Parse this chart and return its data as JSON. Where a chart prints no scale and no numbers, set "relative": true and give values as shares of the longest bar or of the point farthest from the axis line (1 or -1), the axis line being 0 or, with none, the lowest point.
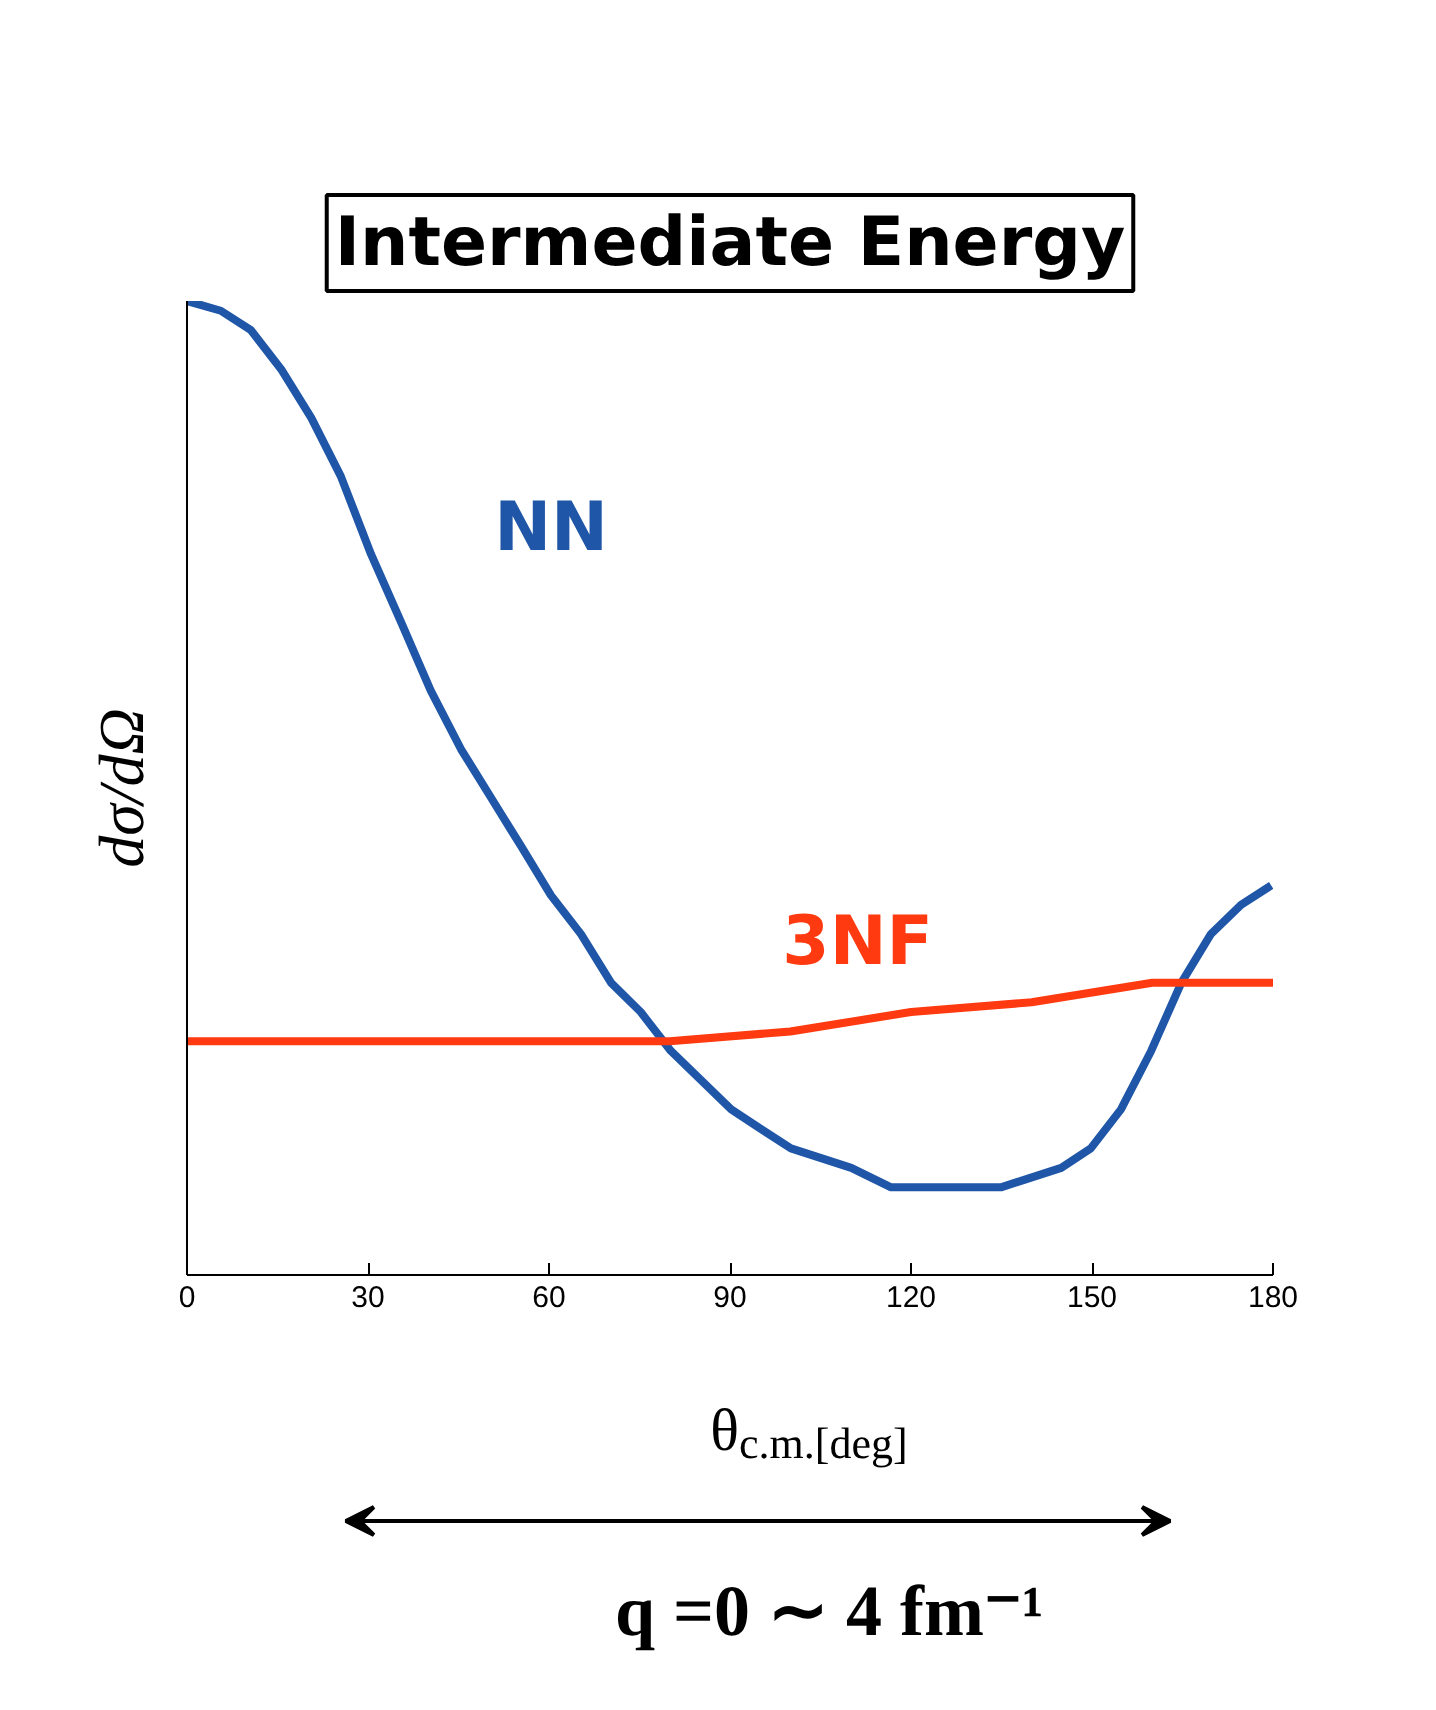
{
  "chart_data": {
    "type": "line",
    "title": "Intermediate Energy",
    "xlabel": "θ$_{c.m.[deg]}$",
    "ylabel": "dσ/dΩ",
    "annotations": [
      "q =0 ∼ 4 fm⁻¹"
    ],
    "relative": true,
    "tick_labels": "x",
    "grid": false,
    "marker": "none",
    "line_style": "solid",
    "xlim": [
      0,
      180
    ],
    "xticks": [
      0,
      30,
      60,
      90,
      120,
      150,
      180
    ],
    "series": [
      {
        "name": "NN",
        "color": "#1f56a8",
        "x": [
          0,
          5.6,
          10.6,
          15.6,
          20.6,
          25.5,
          30.5,
          35.5,
          40.4,
          45.4,
          50.4,
          55.4,
          60.3,
          65.3,
          70.3,
          75.2,
          80.2,
          85.2,
          90.2,
          95.1,
          100.1,
          105.1,
          110.1,
          116.7,
          125.0,
          130.0,
          134.9,
          139.9,
          144.9,
          149.8,
          154.8,
          159.8,
          164.8,
          169.7,
          174.7,
          179.7
        ],
        "values": [
          1.0,
          0.99,
          0.97,
          0.93,
          0.88,
          0.82,
          0.74,
          0.67,
          0.6,
          0.54,
          0.49,
          0.44,
          0.39,
          0.35,
          0.3,
          0.27,
          0.23,
          0.2,
          0.17,
          0.15,
          0.13,
          0.12,
          0.11,
          0.09,
          0.09,
          0.09,
          0.09,
          0.1,
          0.11,
          0.13,
          0.17,
          0.23,
          0.3,
          0.35,
          0.38,
          0.4
        ]
      },
      {
        "name": "3NF",
        "color": "#ff3a10",
        "x": [
          0,
          20,
          40,
          60,
          80,
          100,
          120,
          140,
          160,
          180
        ],
        "values": [
          0.24,
          0.24,
          0.24,
          0.24,
          0.24,
          0.25,
          0.27,
          0.28,
          0.3,
          0.3
        ]
      }
    ]
  }
}
